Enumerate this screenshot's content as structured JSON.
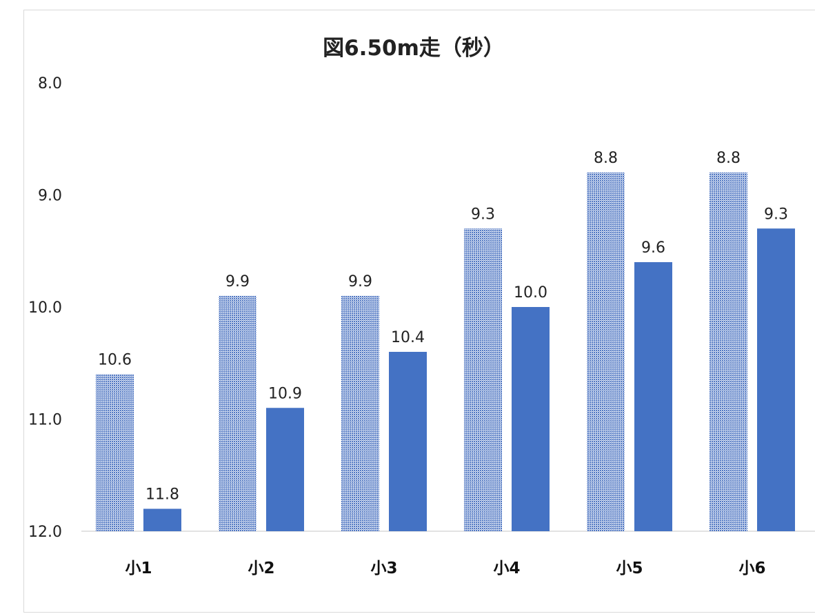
{
  "chart_data": {
    "type": "bar",
    "title": "図6.50m走（秒）",
    "categories": [
      "小1",
      "小2",
      "小3",
      "小4",
      "小5",
      "小6"
    ],
    "series": [
      {
        "pattern": "dotted",
        "color": "#4472c4",
        "values": [
          10.6,
          9.9,
          9.9,
          9.3,
          8.8,
          8.8
        ],
        "labels": [
          "10.6",
          "9.9",
          "9.9",
          "9.3",
          "8.8",
          "8.8"
        ]
      },
      {
        "pattern": "solid",
        "color": "#4472c4",
        "values": [
          11.8,
          10.9,
          10.4,
          10.0,
          9.6,
          9.3
        ],
        "labels": [
          "11.8",
          "10.9",
          "10.4",
          "10.0",
          "9.6",
          "9.3"
        ]
      }
    ],
    "yaxis": {
      "min": 8.0,
      "max": 12.0,
      "reversed": true,
      "ticks": [
        "8.0",
        "9.0",
        "10.0",
        "11.0",
        "12.0"
      ]
    },
    "grid": false,
    "legend": "none"
  }
}
